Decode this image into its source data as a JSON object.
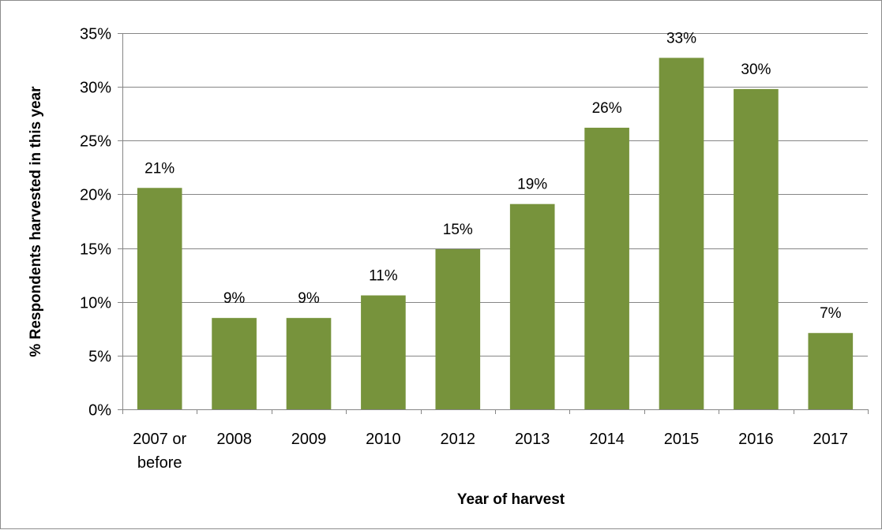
{
  "chart_data": {
    "type": "bar",
    "title": "",
    "xlabel": "Year of harvest",
    "ylabel": "% Respondents harvested in this year",
    "categories": [
      [
        "2007 or",
        "before"
      ],
      [
        "2008"
      ],
      [
        "2009"
      ],
      [
        "2010"
      ],
      [
        "2012"
      ],
      [
        "2013"
      ],
      [
        "2014"
      ],
      [
        "2015"
      ],
      [
        "2016"
      ],
      [
        "2017"
      ]
    ],
    "values": [
      20.6,
      8.5,
      8.5,
      10.6,
      14.9,
      19.1,
      26.2,
      32.7,
      29.8,
      7.1
    ],
    "data_labels": [
      "21%",
      "9%",
      "9%",
      "11%",
      "15%",
      "19%",
      "26%",
      "33%",
      "30%",
      "7%"
    ],
    "ylim": [
      0,
      35
    ],
    "yticks": [
      0,
      5,
      10,
      15,
      20,
      25,
      30,
      35
    ],
    "ytick_labels": [
      "0%",
      "5%",
      "10%",
      "15%",
      "20%",
      "25%",
      "30%",
      "35%"
    ],
    "grid": true,
    "legend": "none",
    "colors": {
      "bar": "#77933c",
      "grid": "#868686",
      "axis": "#868686"
    }
  }
}
